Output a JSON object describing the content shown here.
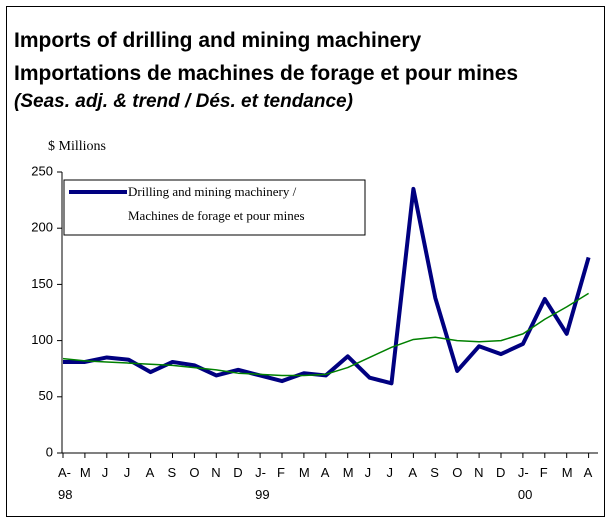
{
  "chart_data": {
    "type": "line",
    "title": "Imports of drilling and mining machinery",
    "subtitle": "Importations de machines de forage et pour mines",
    "note": "(Seas. adj. & trend / Dés. et tendance)",
    "y_axis_label": "$ Millions",
    "categories": [
      "A-\n98",
      "M",
      "J",
      "J",
      "A",
      "S",
      "O",
      "N",
      "D",
      "J-\n99",
      "F",
      "M",
      "A",
      "M",
      "J",
      "J",
      "A",
      "S",
      "O",
      "N",
      "D",
      "J-\n00",
      "F",
      "M",
      "A"
    ],
    "series": [
      {
        "name": "Drilling and mining machinery /\nMachines de forage et pour mines",
        "color": "#000080",
        "values": [
          81,
          81,
          85,
          83,
          72,
          81,
          78,
          69,
          74,
          69,
          64,
          71,
          69,
          86,
          67,
          62,
          235,
          138,
          73,
          95,
          88,
          97,
          137,
          106,
          174
        ]
      },
      {
        "color": "#008000",
        "values": [
          84,
          82,
          81,
          80,
          79,
          78,
          76,
          74,
          71,
          70,
          69,
          69,
          70,
          76,
          85,
          94,
          101,
          103,
          100,
          99,
          100,
          106,
          119,
          130,
          142
        ]
      }
    ],
    "ylim": [
      0,
      250
    ],
    "yticks": [
      0,
      50,
      100,
      150,
      200,
      250
    ],
    "grid": false,
    "legend": "top-left"
  }
}
